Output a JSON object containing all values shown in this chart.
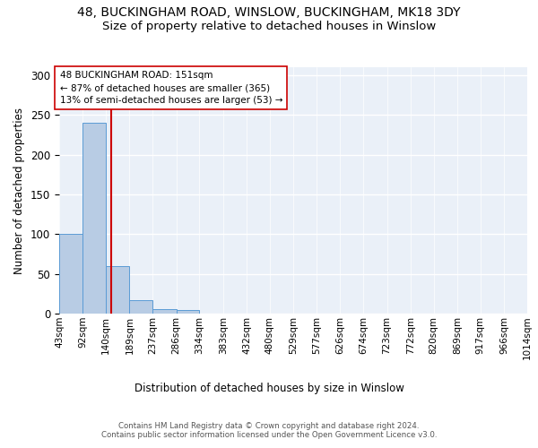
{
  "title": "48, BUCKINGHAM ROAD, WINSLOW, BUCKINGHAM, MK18 3DY",
  "subtitle": "Size of property relative to detached houses in Winslow",
  "xlabel_bottom": "Distribution of detached houses by size in Winslow",
  "ylabel": "Number of detached properties",
  "bar_edges": [
    43,
    92,
    140,
    189,
    237,
    286,
    334,
    383,
    432,
    480,
    529,
    577,
    626,
    674,
    723,
    772,
    820,
    869,
    917,
    966,
    1014
  ],
  "bar_heights": [
    100,
    240,
    60,
    17,
    6,
    4,
    0,
    0,
    0,
    0,
    0,
    0,
    0,
    0,
    0,
    0,
    0,
    0,
    0,
    0
  ],
  "bar_color": "#b8cce4",
  "bar_edge_color": "#5b9bd5",
  "property_size": 151,
  "red_line_color": "#cc0000",
  "annotation_text": "48 BUCKINGHAM ROAD: 151sqm\n← 87% of detached houses are smaller (365)\n13% of semi-detached houses are larger (53) →",
  "annotation_box_color": "#ffffff",
  "annotation_box_edge_color": "#cc0000",
  "ylim": [
    0,
    310
  ],
  "yticks": [
    0,
    50,
    100,
    150,
    200,
    250,
    300
  ],
  "bg_color": "#eaf0f8",
  "footer_text": "Contains HM Land Registry data © Crown copyright and database right 2024.\nContains public sector information licensed under the Open Government Licence v3.0.",
  "tick_label_fontsize": 7.5,
  "title_fontsize": 10,
  "subtitle_fontsize": 9.5
}
